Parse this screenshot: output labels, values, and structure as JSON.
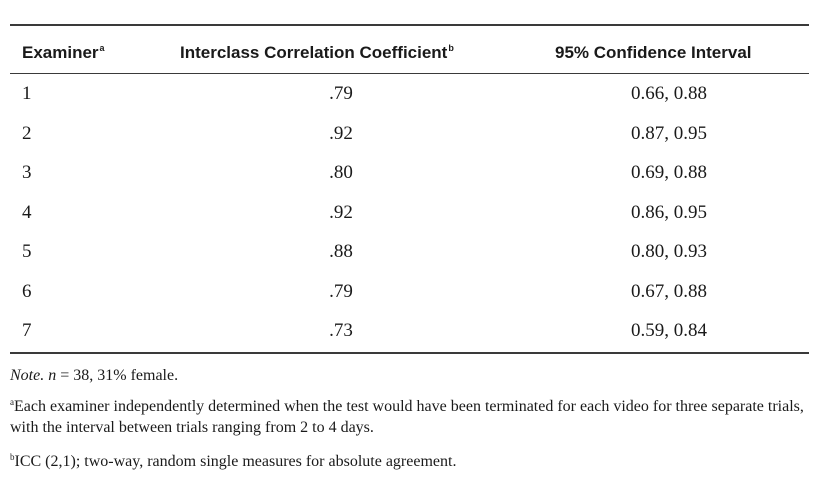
{
  "table": {
    "headers": [
      {
        "label": "Examiner",
        "sup": "a"
      },
      {
        "label": "Interclass Correlation Coefficient",
        "sup": "b"
      },
      {
        "label": "95% Confidence Interval",
        "sup": ""
      }
    ],
    "rows": [
      {
        "examiner": "1",
        "icc": ".79",
        "ci": "0.66, 0.88"
      },
      {
        "examiner": "2",
        "icc": ".92",
        "ci": "0.87, 0.95"
      },
      {
        "examiner": "3",
        "icc": ".80",
        "ci": "0.69, 0.88"
      },
      {
        "examiner": "4",
        "icc": ".92",
        "ci": "0.86, 0.95"
      },
      {
        "examiner": "5",
        "icc": ".88",
        "ci": "0.80, 0.93"
      },
      {
        "examiner": "6",
        "icc": ".79",
        "ci": "0.67, 0.88"
      },
      {
        "examiner": "7",
        "icc": ".73",
        "ci": "0.59, 0.84"
      }
    ]
  },
  "notes": {
    "note_label": "Note.",
    "n_label": "n",
    "note_rest": " = 38, 31% female.",
    "footnote_a_mark": "a",
    "footnote_a_text": "Each examiner independently determined when the test would have been terminated for each video for three separate trials, with the interval between trials ranging from 2 to 4 days.",
    "footnote_b_mark": "b",
    "footnote_b_text": "ICC (2,1); two-way, random single measures for absolute agreement."
  }
}
